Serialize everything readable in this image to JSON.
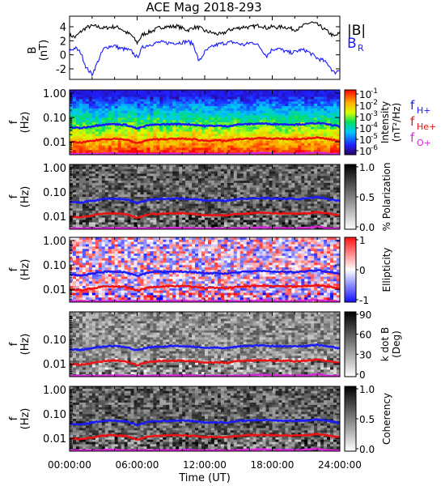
{
  "chart_data": {
    "type": "spectrogram",
    "title": "ACE Mag 2018-293",
    "xlabel": "Time (UT)",
    "x_ticks": [
      "00:00:00",
      "06:00:00",
      "12:00:00",
      "18:00:00",
      "24:00:00"
    ],
    "x_range_hours": [
      0,
      24
    ],
    "top_panel": {
      "ylabel": "B",
      "yunit": "(nT)",
      "ylim": [
        -3.5,
        5.5
      ],
      "y_ticks": [
        4,
        2,
        0,
        -2
      ],
      "legend": {
        "B_mag": "|B|",
        "B_R": "B",
        "B_R_sub": "R"
      },
      "series": [
        {
          "key": "Bmag",
          "color": "#000000",
          "t": [
            0,
            0.5,
            1,
            1.5,
            2,
            2.5,
            3,
            3.5,
            4,
            4.5,
            5,
            5.5,
            6,
            6.5,
            7,
            7.5,
            8,
            8.5,
            9,
            9.5,
            10,
            10.5,
            11,
            11.5,
            12,
            12.5,
            13,
            13.5,
            14,
            14.5,
            15,
            15.5,
            16,
            16.5,
            17,
            17.5,
            18,
            18.5,
            19,
            19.5,
            20,
            20.5,
            21,
            21.5,
            22,
            22.5,
            23,
            23.5,
            24
          ],
          "v": [
            2.8,
            2.5,
            3.3,
            3.9,
            4.1,
            4.0,
            3.8,
            3.9,
            4.0,
            3.8,
            3.2,
            2.8,
            1.7,
            2.9,
            3.2,
            3.5,
            3.9,
            4.0,
            4.0,
            4.1,
            3.8,
            3.5,
            3.9,
            3.9,
            3.4,
            3.2,
            3.0,
            2.9,
            3.4,
            3.7,
            3.8,
            4.0,
            3.9,
            4.1,
            4.2,
            3.8,
            4.0,
            3.9,
            4.0,
            3.8,
            3.6,
            3.8,
            4.4,
            4.6,
            4.3,
            3.8,
            3.2,
            2.6,
            3.1
          ]
        },
        {
          "key": "BR",
          "color": "#1a1aff",
          "t": [
            0,
            0.5,
            1,
            1.5,
            2,
            2.5,
            3,
            3.5,
            4,
            4.5,
            5,
            5.5,
            6,
            6.5,
            7,
            7.5,
            8,
            8.5,
            9,
            9.5,
            10,
            10.5,
            11,
            11.5,
            12,
            12.5,
            13,
            13.5,
            14,
            14.5,
            15,
            15.5,
            16,
            16.5,
            17,
            17.5,
            18,
            18.5,
            19,
            19.5,
            20,
            20.5,
            21,
            21.5,
            22,
            22.5,
            23,
            23.5,
            24
          ],
          "v": [
            0.6,
            1.0,
            0.3,
            -1.9,
            -2.8,
            -1.0,
            0.8,
            1.2,
            1.3,
            0.9,
            0.8,
            0.5,
            -0.4,
            1.1,
            1.4,
            1.6,
            1.8,
            1.7,
            1.7,
            1.7,
            1.8,
            1.9,
            1.5,
            -1.0,
            0.4,
            1.0,
            1.4,
            1.6,
            1.7,
            1.8,
            1.6,
            1.4,
            1.7,
            1.7,
            0.9,
            -0.2,
            0.8,
            0.9,
            0.6,
            0.3,
            0.4,
            0.7,
            0.6,
            0.1,
            -0.5,
            -0.8,
            -1.4,
            -2.6,
            -2.1
          ]
        }
      ]
    },
    "frequency_lines": {
      "labels": {
        "H": "H+",
        "He": "He+",
        "O": "O+"
      },
      "t": [
        0,
        1,
        2,
        3,
        4,
        5,
        6,
        7,
        8,
        9,
        10,
        11,
        12,
        13,
        14,
        15,
        16,
        17,
        18,
        19,
        20,
        21,
        22,
        23,
        24
      ],
      "H": [
        0.04,
        0.037,
        0.044,
        0.052,
        0.054,
        0.05,
        0.035,
        0.048,
        0.052,
        0.053,
        0.054,
        0.051,
        0.045,
        0.046,
        0.044,
        0.052,
        0.054,
        0.057,
        0.054,
        0.053,
        0.052,
        0.054,
        0.06,
        0.052,
        0.043
      ],
      "He": [
        0.01,
        0.0093,
        0.011,
        0.013,
        0.0135,
        0.0125,
        0.0088,
        0.012,
        0.013,
        0.0133,
        0.0135,
        0.0128,
        0.0113,
        0.0115,
        0.011,
        0.013,
        0.0135,
        0.0143,
        0.0135,
        0.0133,
        0.013,
        0.0135,
        0.015,
        0.013,
        0.0108
      ],
      "O": [
        0.0025,
        0.0023,
        0.00275,
        0.00325,
        0.0034,
        0.0031,
        0.0022,
        0.003,
        0.00325,
        0.0033,
        0.0034,
        0.0032,
        0.0028,
        0.0029,
        0.00275,
        0.00325,
        0.0034,
        0.0036,
        0.0034,
        0.0033,
        0.00325,
        0.0034,
        0.00375,
        0.00325,
        0.0027
      ]
    },
    "spectrogram_panels": [
      {
        "id": "intensity",
        "ylabel": "f",
        "yunit": "(Hz)",
        "colorbar": "rainbow",
        "cbar_title": "Intensity",
        "cbar_unit": "(nT²/Hz)",
        "cbar_ticks": [
          {
            "base": "10",
            "exp": "-1"
          },
          {
            "base": "10",
            "exp": "-2"
          },
          {
            "base": "10",
            "exp": "-3"
          },
          {
            "base": "10",
            "exp": "-4"
          },
          {
            "base": "10",
            "exp": "-5"
          },
          {
            "base": "10",
            "exp": "-6"
          }
        ],
        "y_ticks": [
          "1.00",
          "0.10",
          "0.01"
        ]
      },
      {
        "id": "polarization",
        "ylabel": "f",
        "yunit": "(Hz)",
        "colorbar": "gray",
        "cbar_title": "% Polarization",
        "cbar_ticks": [
          "1.0",
          "0.5",
          "0.0"
        ],
        "y_ticks": [
          "1.00",
          "0.10",
          "0.01"
        ]
      },
      {
        "id": "ellipticity",
        "ylabel": "f",
        "yunit": "(Hz)",
        "colorbar": "bwr",
        "cbar_title": "Ellipticity",
        "cbar_ticks": [
          "1",
          "0",
          "-1"
        ],
        "y_ticks": [
          "1.00",
          "0.10",
          "0.01"
        ]
      },
      {
        "id": "kdotb",
        "ylabel": "f",
        "yunit": "(Hz)",
        "colorbar": "gray",
        "cbar_title": "k dot B",
        "cbar_unit": "(Deg)",
        "cbar_ticks": [
          "90",
          "60",
          "30",
          "0"
        ],
        "y_ticks": [
          "0.10",
          "0.01"
        ]
      },
      {
        "id": "coherency",
        "ylabel": "f",
        "yunit": "(Hz)",
        "colorbar": "gray",
        "cbar_title": "Coherency",
        "cbar_ticks": [
          "1.0",
          "0.5",
          "0.0"
        ],
        "y_ticks": [
          "1.00",
          "0.10",
          "0.01"
        ]
      }
    ],
    "freq_range_hz": [
      0.003,
      1.35
    ]
  },
  "colors": {
    "H": "#1a1aff",
    "He": "#ee1111",
    "O": "#dd22dd",
    "Bmag": "#000000",
    "BR": "#1a1aff"
  }
}
